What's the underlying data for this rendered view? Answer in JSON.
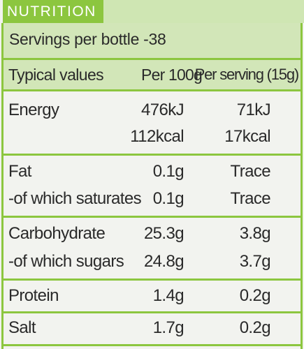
{
  "title": "NUTRITION",
  "servings": "Servings per bottle -38",
  "headers": {
    "label": "Typical values",
    "per100": "Per 100g",
    "perServing": "Per serving (15g)"
  },
  "rows": [
    {
      "label": "Energy",
      "per100": "476kJ",
      "perServing": "71kJ"
    },
    {
      "label": "",
      "per100": "112kcal",
      "perServing": "17kcal"
    },
    {
      "label": "Fat",
      "per100": "0.1g",
      "perServing": "Trace"
    },
    {
      "label": "-of which saturates",
      "per100": "0.1g",
      "perServing": "Trace"
    },
    {
      "label": "Carbohydrate",
      "per100": "25.3g",
      "perServing": "3.8g"
    },
    {
      "label": "-of which sugars",
      "per100": "24.8g",
      "perServing": "3.7g"
    },
    {
      "label": "Protein",
      "per100": "1.4g",
      "perServing": "0.2g"
    },
    {
      "label": "Salt",
      "per100": "1.7g",
      "perServing": "0.2g"
    }
  ],
  "colors": {
    "accent": "#8cc63f",
    "band": "#d2e6b8",
    "background": "#f2f3ef",
    "text": "#2a2a2a"
  }
}
